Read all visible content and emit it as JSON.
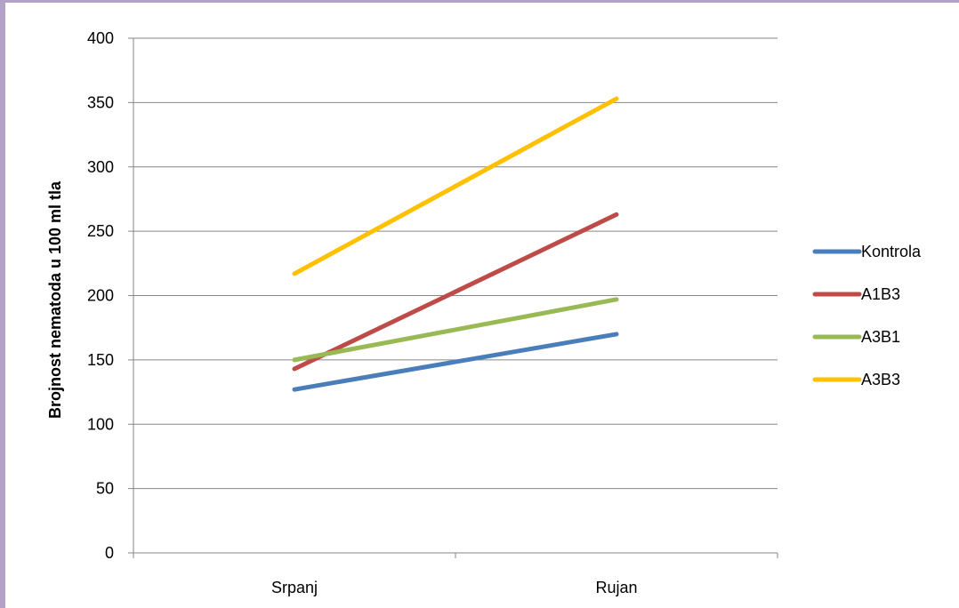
{
  "chart_data": {
    "type": "line",
    "categories": [
      "Srpanj",
      "Rujan"
    ],
    "ylabel": "Brojnost nematoda u 100 ml tla",
    "xlabel": "",
    "ylim": [
      0,
      400
    ],
    "yticks": [
      0,
      50,
      100,
      150,
      200,
      250,
      300,
      350,
      400
    ],
    "grid": true,
    "legend_position": "right",
    "series": [
      {
        "name": "Kontrola",
        "values": [
          127,
          170
        ],
        "color": "#4a7ebb"
      },
      {
        "name": "A1B3",
        "values": [
          143,
          263
        ],
        "color": "#be4b48"
      },
      {
        "name": "A3B1",
        "values": [
          150,
          197
        ],
        "color": "#98b954"
      },
      {
        "name": "A3B3",
        "values": [
          217,
          353
        ],
        "color": "#ffc000"
      }
    ]
  }
}
